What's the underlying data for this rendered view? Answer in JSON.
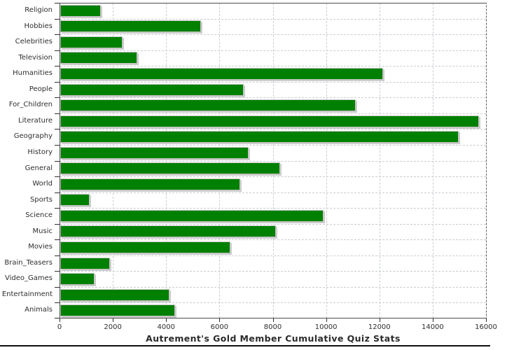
{
  "chart_data": {
    "type": "bar",
    "orientation": "horizontal",
    "title": "Autrement's Gold Member Cumulative Quiz Stats",
    "categories": [
      "Religion",
      "Hobbies",
      "Celebrities",
      "Television",
      "Humanities",
      "People",
      "For_Children",
      "Literature",
      "Geography",
      "History",
      "General",
      "World",
      "Sports",
      "Science",
      "Music",
      "Movies",
      "Brain_Teasers",
      "Video_Games",
      "Entertainment",
      "Animals"
    ],
    "values": [
      1530,
      5280,
      2350,
      2900,
      12100,
      6880,
      11080,
      15700,
      14940,
      7080,
      8250,
      6750,
      1110,
      9870,
      8080,
      6380,
      1870,
      1300,
      4100,
      4310
    ],
    "xlabel": "",
    "ylabel": "",
    "xlim": [
      0,
      16000
    ],
    "x_ticks": [
      0,
      2000,
      4000,
      6000,
      8000,
      10000,
      12000,
      14000,
      16000
    ],
    "grid": "dashed",
    "legend": "none",
    "bar_color": "#008000",
    "bar_shadow_color": "#cccccc",
    "grid_color": "#c9ced3",
    "plot_border_color": "#4d4d4d",
    "text_color": "#2e2e2e",
    "background_color": "#ffffff"
  }
}
